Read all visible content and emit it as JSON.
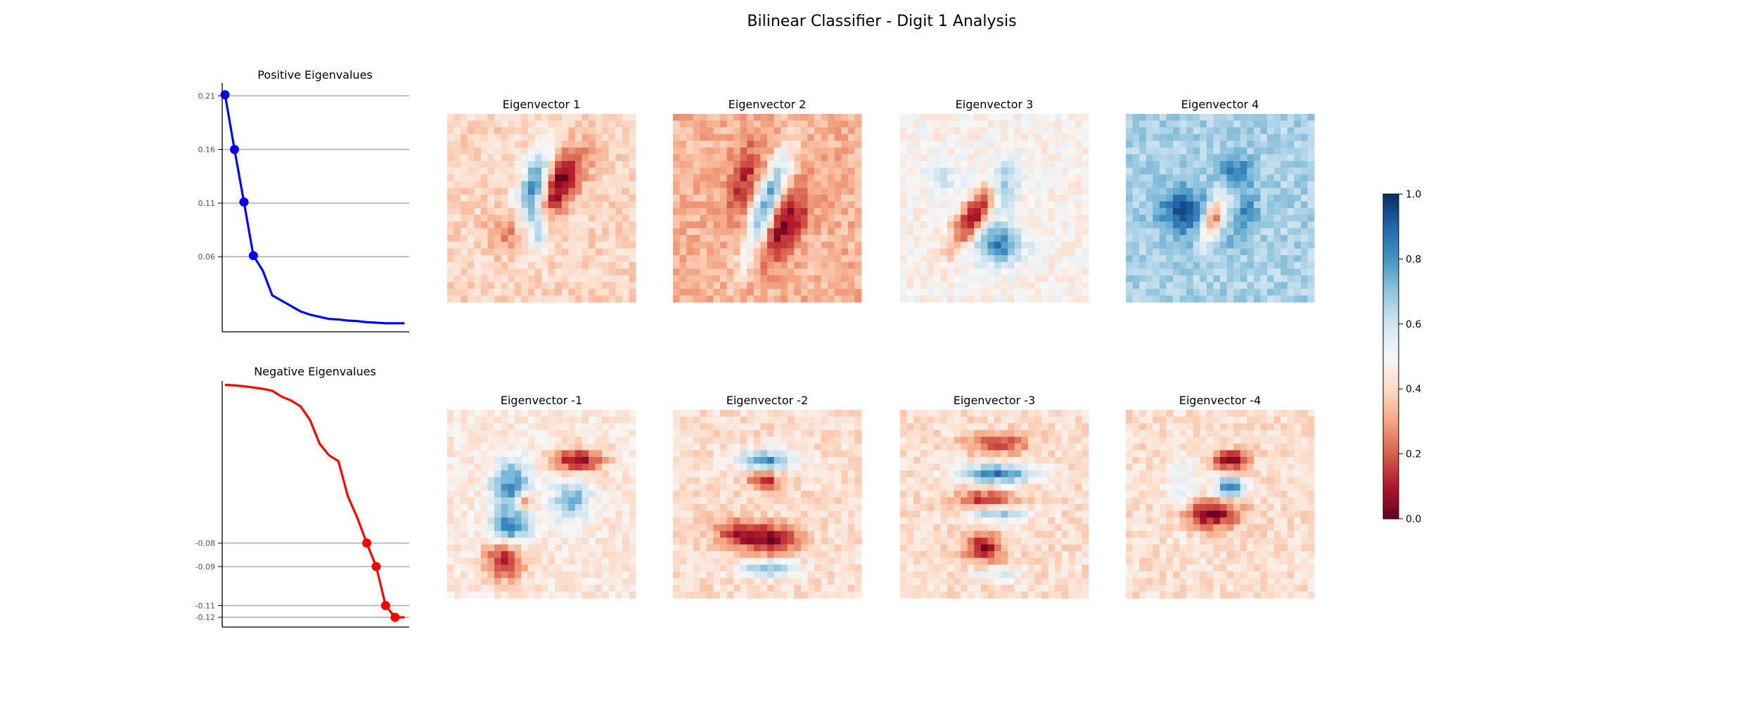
{
  "title": "Bilinear Classifier - Digit 1 Analysis",
  "chart_data": [
    {
      "type": "line",
      "title": "Positive Eigenvalues",
      "color": "#0000ff",
      "y_ticks": [
        "0.21",
        "0.16",
        "0.11",
        "0.06"
      ],
      "y_tick_values": [
        0.21,
        0.16,
        0.11,
        0.06
      ],
      "x": [
        0,
        1,
        2,
        3,
        4,
        5,
        6,
        7,
        8,
        9,
        10,
        11,
        12,
        13,
        14,
        15,
        16,
        17,
        18,
        19
      ],
      "values": [
        0.211,
        0.16,
        0.111,
        0.061,
        0.047,
        0.024,
        0.019,
        0.014,
        0.009,
        0.006,
        0.004,
        0.002,
        0.0015,
        0.0005,
        0.0,
        -0.001,
        -0.0015,
        -0.002,
        -0.002,
        -0.002
      ],
      "marked_points": [
        0,
        1,
        2,
        3
      ],
      "ylim": [
        -0.01,
        0.222
      ],
      "grid": "major y at marked values"
    },
    {
      "type": "line",
      "title": "Negative Eigenvalues",
      "color": "#ff0000",
      "y_ticks": [
        "-0.08",
        "-0.09",
        "-0.11",
        "-0.12"
      ],
      "y_tick_values": [
        -0.081,
        -0.093,
        -0.113,
        -0.119
      ],
      "x": [
        0,
        1,
        2,
        3,
        4,
        5,
        6,
        7,
        8,
        9,
        10,
        11,
        12,
        13,
        14,
        15,
        16,
        17,
        18,
        19
      ],
      "values": [
        0.0,
        -0.0002,
        -0.0007,
        -0.0013,
        -0.002,
        -0.003,
        -0.006,
        -0.008,
        -0.011,
        -0.018,
        -0.03,
        -0.036,
        -0.039,
        -0.057,
        -0.068,
        -0.081,
        -0.093,
        -0.113,
        -0.119,
        -0.119
      ],
      "display_x": [
        0,
        1,
        2,
        3,
        4,
        5,
        6,
        7,
        8,
        9,
        10,
        11,
        12,
        13,
        14,
        15,
        16,
        17,
        18,
        19
      ],
      "marked_points": [
        15,
        16,
        17,
        18
      ],
      "ylim": [
        -0.124,
        0.002
      ],
      "grid": "major y at marked values"
    },
    {
      "type": "heatmap",
      "colormap": "RdBu",
      "colorbar_ticks": [
        "0.0",
        "0.2",
        "0.4",
        "0.6",
        "0.8",
        "1.0"
      ],
      "colorbar_range": [
        0.0,
        1.0
      ],
      "panels": [
        {
          "title": "Eigenvector 1"
        },
        {
          "title": "Eigenvector 2"
        },
        {
          "title": "Eigenvector 3"
        },
        {
          "title": "Eigenvector 4"
        },
        {
          "title": "Eigenvector -1"
        },
        {
          "title": "Eigenvector -2"
        },
        {
          "title": "Eigenvector -3"
        },
        {
          "title": "Eigenvector -4"
        }
      ],
      "grid_size": 28
    }
  ]
}
